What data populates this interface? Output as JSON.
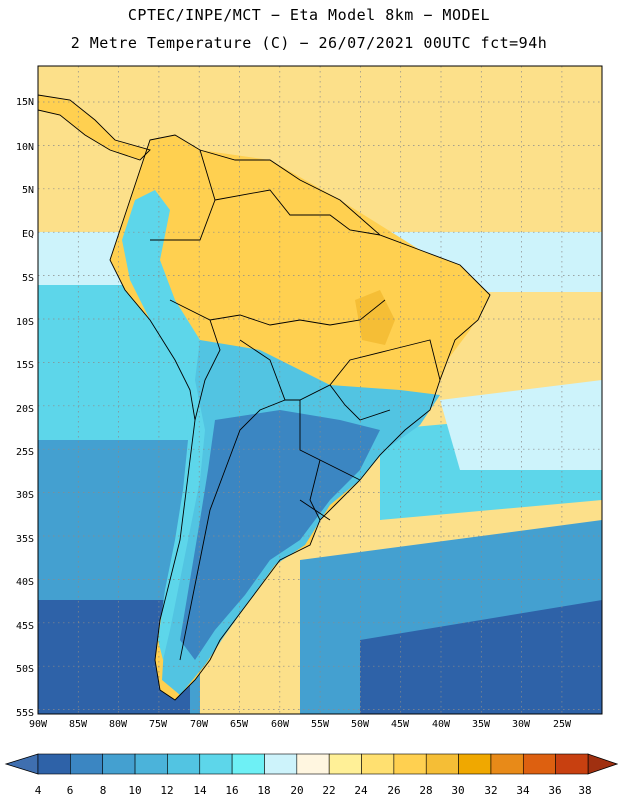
{
  "title_line1": "CPTEC/INPE/MCT −  Eta Model 8km − MODEL",
  "title_line2": "2 Metre Temperature (C) − 26/07/2021 00UTC fct=94h",
  "lat_labels": [
    "15N",
    "10N",
    "5N",
    "EQ",
    "5S",
    "10S",
    "15S",
    "20S",
    "25S",
    "30S",
    "35S",
    "40S",
    "45S",
    "50S",
    "55S"
  ],
  "lon_labels": [
    "90W",
    "85W",
    "80W",
    "75W",
    "70W",
    "65W",
    "60W",
    "55W",
    "50W",
    "45W",
    "40W",
    "35W",
    "30W",
    "25W"
  ],
  "colorbar": {
    "ticks": [
      "4",
      "6",
      "8",
      "10",
      "12",
      "14",
      "16",
      "18",
      "20",
      "22",
      "24",
      "26",
      "28",
      "30",
      "32",
      "34",
      "36",
      "38"
    ],
    "colors": [
      "#3f6fb0",
      "#2e62a8",
      "#3b86c2",
      "#44a0d0",
      "#4bb3da",
      "#52c4e2",
      "#5dd6ea",
      "#6ef0f5",
      "#cdf3fb",
      "#fff6e0",
      "#fff097",
      "#ffe070",
      "#ffd050",
      "#f5be36",
      "#f0a800",
      "#e88a18",
      "#dd6010",
      "#c84010",
      "#a03010"
    ]
  },
  "colors": {
    "ocean_warm": "#fce08a",
    "ocean_mild": "#cdf3fb",
    "ocean_cool": "#5dd6ea",
    "ocean_cold": "#44a0d0",
    "ocean_coldest": "#2e62a8",
    "land_hot": "#f5be36",
    "land_warm": "#ffd050",
    "land_cool": "#52c4e2",
    "land_cold": "#3b86c2"
  }
}
